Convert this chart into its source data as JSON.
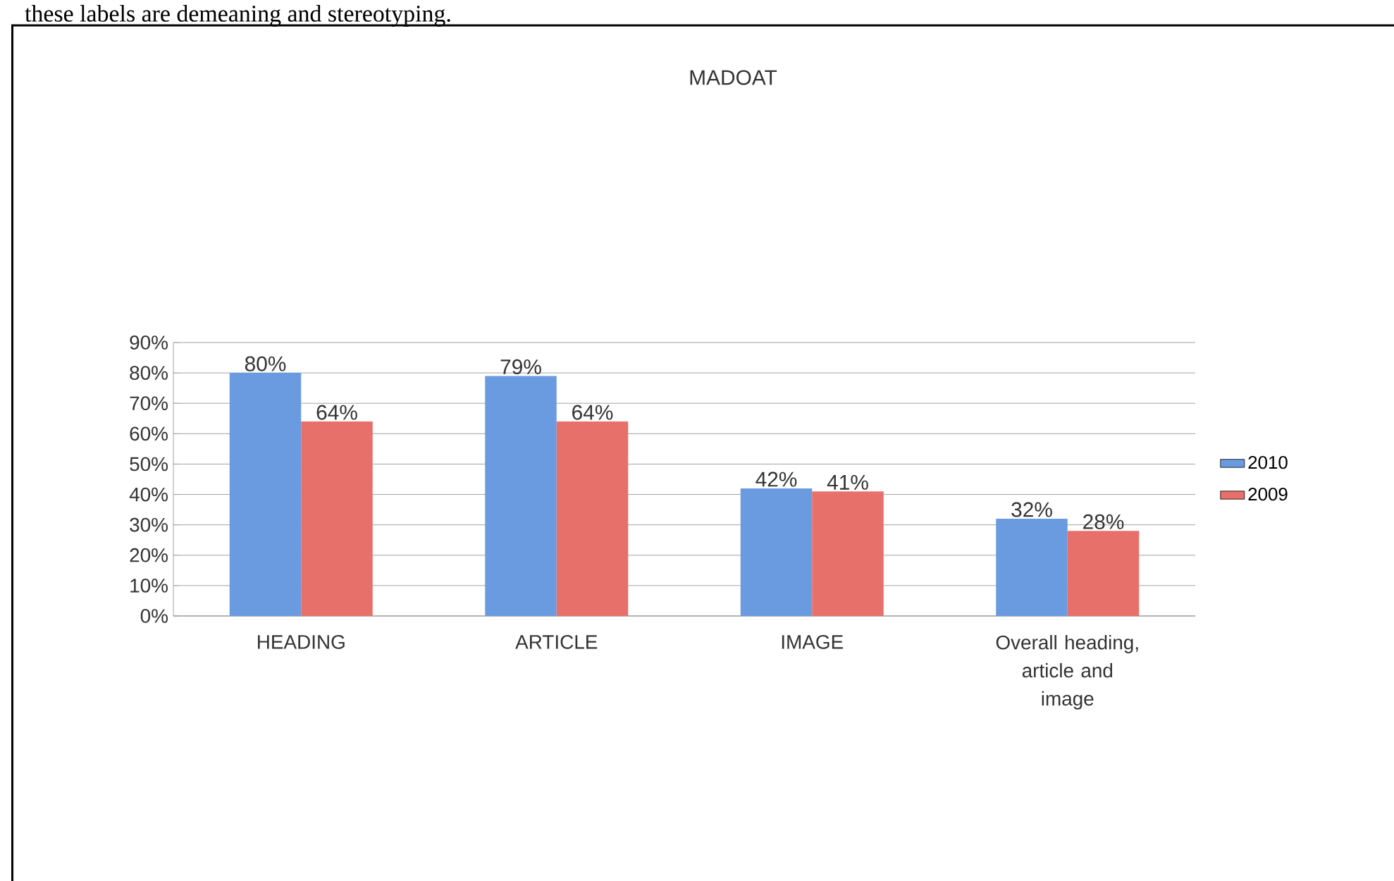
{
  "chart_data": {
    "type": "bar",
    "title": "MADOAT",
    "annotations": [
      "these labels are demeaning and stereotyping."
    ],
    "categories": [
      "HEADING",
      "ARTICLE",
      "IMAGE",
      "Overall heading, article and image"
    ],
    "series": [
      {
        "name": "2010",
        "color": "#6a9be0",
        "values": [
          80,
          79,
          42,
          32
        ],
        "value_labels": [
          "80%",
          "79%",
          "42%",
          "32%"
        ]
      },
      {
        "name": "2009",
        "color": "#e8706a",
        "values": [
          64,
          64,
          41,
          28
        ],
        "value_labels": [
          "64%",
          "64%",
          "41%",
          "28%"
        ]
      }
    ],
    "ylim": [
      0,
      90
    ],
    "yticks": [
      {
        "value": 0,
        "label": "0%"
      },
      {
        "value": 10,
        "label": "10%"
      },
      {
        "value": 20,
        "label": "20%"
      },
      {
        "value": 30,
        "label": "30%"
      },
      {
        "value": 40,
        "label": "40%"
      },
      {
        "value": 50,
        "label": "50%"
      },
      {
        "value": 60,
        "label": "60%"
      },
      {
        "value": 70,
        "label": "70%"
      },
      {
        "value": 80,
        "label": "80%"
      },
      {
        "value": 90,
        "label": "90%"
      }
    ],
    "grid": "y",
    "legend": "right"
  }
}
